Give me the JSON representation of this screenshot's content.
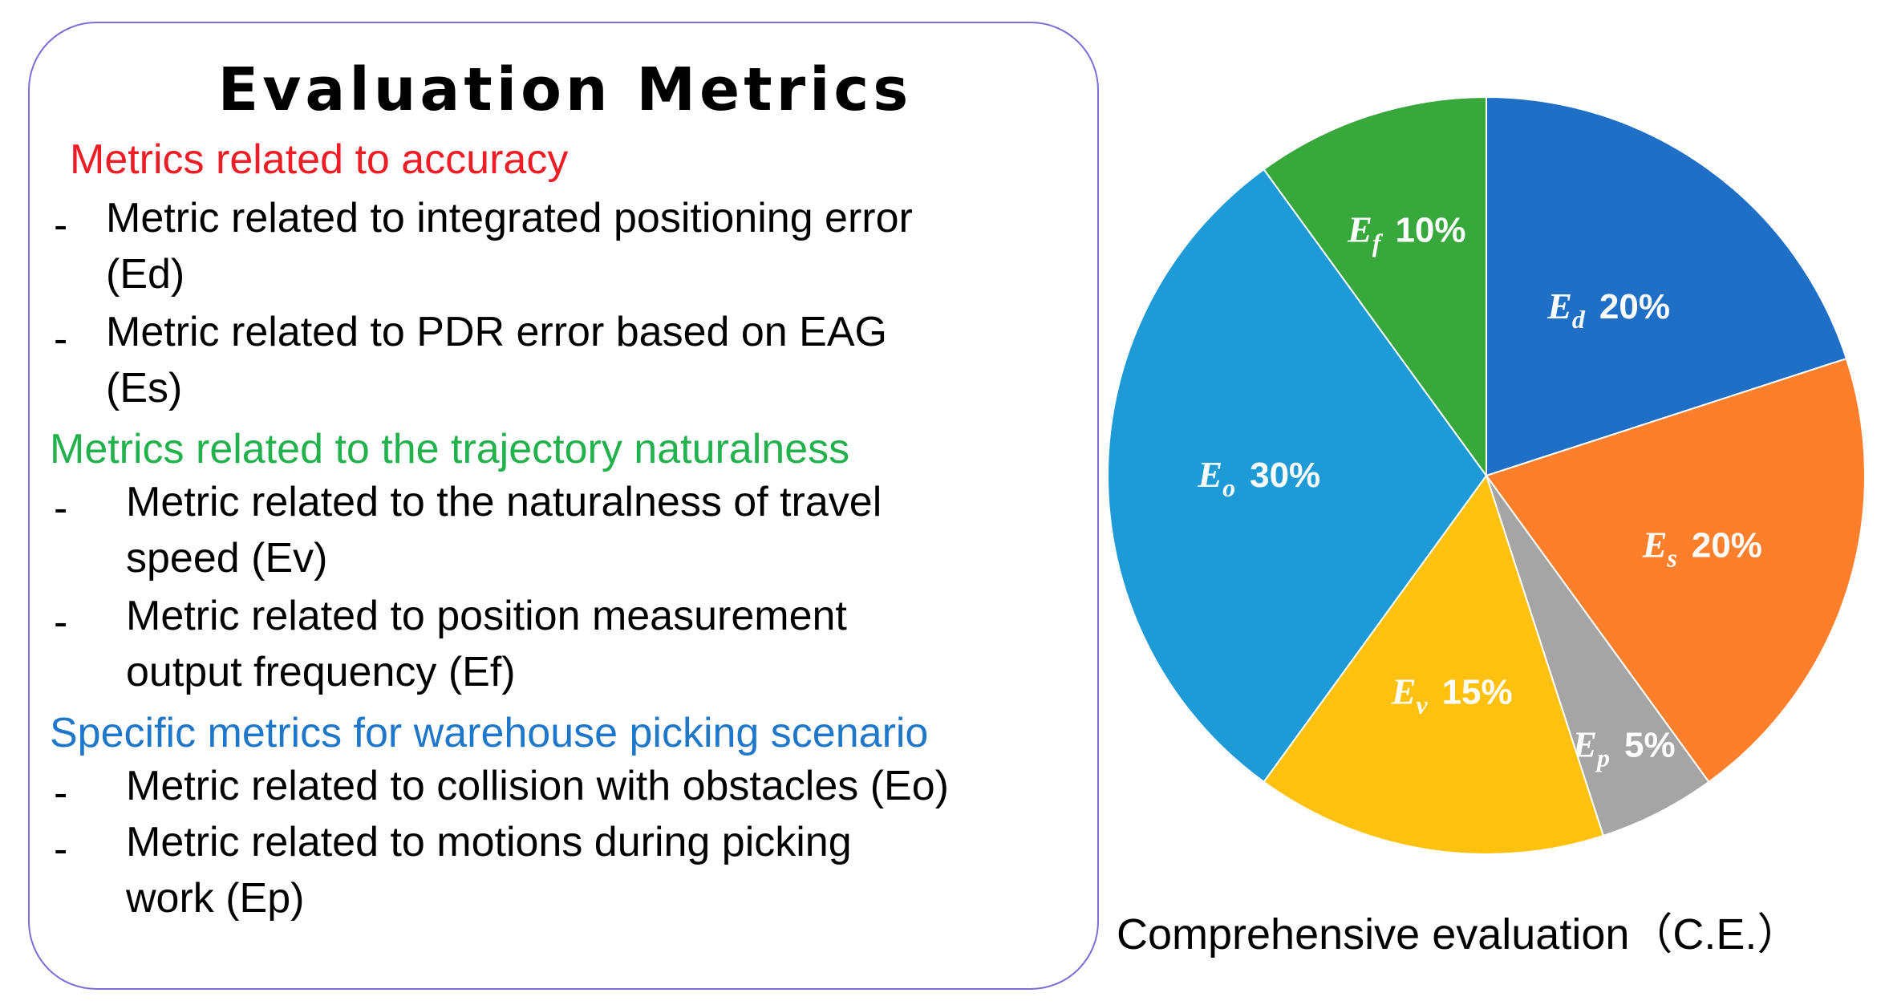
{
  "panel": {
    "title": "Evaluation Metrics",
    "sections": [
      {
        "heading": "Metrics related to accuracy",
        "color": "#ee1c25",
        "items": [
          {
            "dash": "-",
            "line1": "Metric related to integrated positioning error",
            "line2": "(Ed)"
          },
          {
            "dash": "-",
            "line1": "Metric related to PDR error based on EAG",
            "line2": "(Es)"
          }
        ]
      },
      {
        "heading": "Metrics related to the trajectory naturalness",
        "color": "#22b14c",
        "items": [
          {
            "dash": "-",
            "line1": "Metric related to the naturalness of travel",
            "line2": "speed (Ev)"
          },
          {
            "dash": "-",
            "line1": "Metric related to position measurement",
            "line2": "output frequency (Ef)"
          }
        ]
      },
      {
        "heading": "Specific metrics for warehouse picking scenario",
        "color": "#1f77c9",
        "items": [
          {
            "dash": "-",
            "line1": "Metric related to collision with obstacles (Eo)",
            "line2": ""
          },
          {
            "dash": "-",
            "line1": "Metric related to motions during picking",
            "line2": "work (Ep)"
          }
        ]
      }
    ]
  },
  "chart_data": {
    "type": "pie",
    "title": "Comprehensive evaluation（C.E.）",
    "start_angle_deg": 0,
    "direction": "clockwise",
    "slices": [
      {
        "symbol": "E",
        "subscript": "d",
        "label": "20%",
        "value": 20,
        "color": "#1f6fc6"
      },
      {
        "symbol": "E",
        "subscript": "s",
        "label": "20%",
        "value": 20,
        "color": "#fd7f2c"
      },
      {
        "symbol": "E",
        "subscript": "p",
        "label": "5%",
        "value": 5,
        "color": "#a5a5a5"
      },
      {
        "symbol": "E",
        "subscript": "v",
        "label": "15%",
        "value": 15,
        "color": "#fec10d"
      },
      {
        "symbol": "E",
        "subscript": "o",
        "label": "30%",
        "value": 30,
        "color": "#1e9bd7"
      },
      {
        "symbol": "E",
        "subscript": "f",
        "label": "10%",
        "value": 10,
        "color": "#39a83c"
      }
    ]
  }
}
